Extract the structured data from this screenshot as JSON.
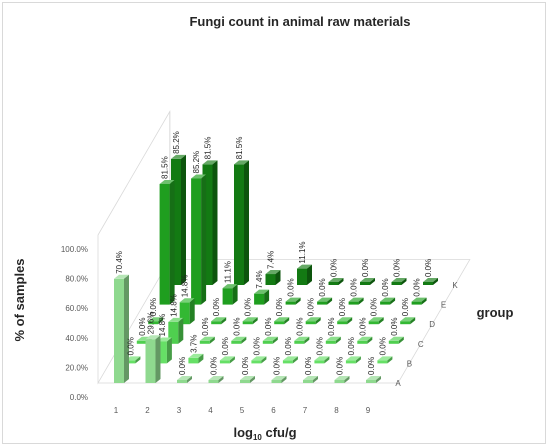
{
  "chart_data": {
    "type": "bar",
    "subtype": "3d-column",
    "title": "Fungi count in animal raw materials",
    "xlabel": "log10 cfu/g",
    "xlabel_main": "log",
    "xlabel_sub": "10",
    "xlabel_rest": " cfu/g",
    "ylabel": "% of samples",
    "zlabel": "group",
    "categories": [
      "1",
      "2",
      "3",
      "4",
      "5",
      "6",
      "7",
      "8",
      "9"
    ],
    "y_ticks": [
      "0.0%",
      "20.0%",
      "40.0%",
      "60.0%",
      "80.0%",
      "100.0%"
    ],
    "ylim": [
      0,
      100
    ],
    "grid": false,
    "series": [
      {
        "name": "A",
        "color": "#8fd98f",
        "values": [
          70.4,
          29.6,
          0.0,
          0.0,
          0.0,
          0.0,
          0.0,
          0.0,
          0.0
        ],
        "labels": [
          "70.4%",
          "29.6%",
          "0.0%",
          "0.0%",
          "0.0%",
          "0.0%",
          "0.0%",
          "0.0%",
          "0.0%"
        ]
      },
      {
        "name": "B",
        "color": "#66e066",
        "values": [
          0.0,
          14.8,
          3.7,
          0.0,
          0.0,
          0.0,
          0.0,
          0.0,
          0.0
        ],
        "labels": [
          "0.0%",
          "14.8%",
          "3.7%",
          "0.0%",
          "0.0%",
          "0.0%",
          "0.0%",
          "0.0%",
          "0.0%"
        ]
      },
      {
        "name": "C",
        "color": "#4fcf4f",
        "values": [
          0.0,
          14.8,
          0.0,
          0.0,
          0.0,
          0.0,
          0.0,
          0.0,
          0.0
        ],
        "labels": [
          "0.0%",
          "14.8%",
          "0.0%",
          "0.0%",
          "0.0%",
          "0.0%",
          "0.0%",
          "0.0%",
          "0.0%"
        ]
      },
      {
        "name": "D",
        "color": "#33b833",
        "values": [
          0.0,
          14.8,
          0.0,
          0.0,
          0.0,
          0.0,
          0.0,
          0.0,
          0.0
        ],
        "labels": [
          "0.0%",
          "14.8%",
          "0.0%",
          "0.0%",
          "0.0%",
          "0.0%",
          "0.0%",
          "0.0%",
          "0.0%"
        ]
      },
      {
        "name": "E",
        "color": "#1f9e1f",
        "values": [
          81.5,
          85.2,
          11.1,
          7.4,
          0.0,
          0.0,
          0.0,
          0.0,
          0.0
        ],
        "labels": [
          "81.5%",
          "85.2%",
          "11.1%",
          "7.4%",
          "0.0%",
          "0.0%",
          "0.0%",
          "0.0%",
          "0.0%"
        ]
      },
      {
        "name": "K",
        "color": "#137a13",
        "values": [
          85.2,
          81.5,
          81.5,
          7.4,
          11.1,
          0.0,
          0.0,
          0.0,
          0.0
        ],
        "labels": [
          "85.2%",
          "81.5%",
          "81.5%",
          "7.4%",
          "11.1%",
          "0.0%",
          "0.0%",
          "0.0%",
          "0.0%"
        ]
      }
    ]
  }
}
